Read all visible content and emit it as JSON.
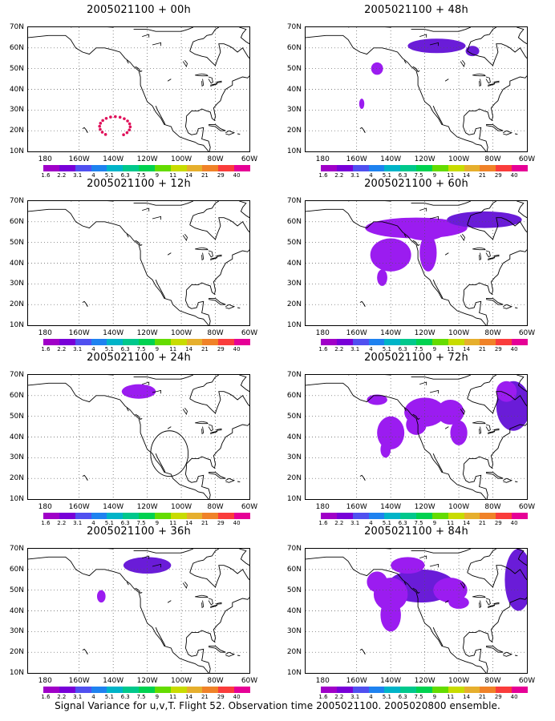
{
  "panels": [
    {
      "title": "2005021100 + 00h",
      "blobs": [],
      "dots": true
    },
    {
      "title": "2005021100 + 48h",
      "blobs": [
        {
          "cx": -113,
          "cy": 61,
          "rx": 17,
          "ry": 3.5,
          "dark": true
        },
        {
          "cx": -92,
          "cy": 58.5,
          "rx": 4,
          "ry": 2.5,
          "dark": true
        },
        {
          "cx": -148,
          "cy": 50,
          "rx": 3.5,
          "ry": 3
        },
        {
          "cx": -157,
          "cy": 33,
          "rx": 1.5,
          "ry": 2.5
        }
      ]
    },
    {
      "title": "2005021100 + 12h",
      "blobs": []
    },
    {
      "title": "2005021100 + 60h",
      "blobs": [
        {
          "cx": -125,
          "cy": 57,
          "rx": 30,
          "ry": 5
        },
        {
          "cx": -85,
          "cy": 61,
          "rx": 22,
          "ry": 4,
          "dark": true
        },
        {
          "cx": -140,
          "cy": 44,
          "rx": 12,
          "ry": 8
        },
        {
          "cx": -145,
          "cy": 33,
          "rx": 3,
          "ry": 4
        },
        {
          "cx": -118,
          "cy": 45,
          "rx": 5,
          "ry": 9
        },
        {
          "cx": -120,
          "cy": 55,
          "rx": 12,
          "ry": 4
        }
      ]
    },
    {
      "title": "2005021100 + 24h",
      "blobs": [
        {
          "cx": -125,
          "cy": 62,
          "rx": 10,
          "ry": 3.5
        }
      ],
      "circle": {
        "cx": -107,
        "cy": 32,
        "r": 11
      }
    },
    {
      "title": "2005021100 + 72h",
      "blobs": [
        {
          "cx": -120,
          "cy": 52,
          "rx": 12,
          "ry": 7
        },
        {
          "cx": -105,
          "cy": 52,
          "rx": 8,
          "ry": 6
        },
        {
          "cx": -140,
          "cy": 42,
          "rx": 8,
          "ry": 8
        },
        {
          "cx": -143,
          "cy": 34,
          "rx": 3,
          "ry": 4
        },
        {
          "cx": -148,
          "cy": 58,
          "rx": 6,
          "ry": 2.5
        },
        {
          "cx": -125,
          "cy": 46,
          "rx": 6,
          "ry": 5
        },
        {
          "cx": -100,
          "cy": 42,
          "rx": 5,
          "ry": 6
        },
        {
          "cx": -68,
          "cy": 55,
          "rx": 10,
          "ry": 12,
          "dark": true
        },
        {
          "cx": -72,
          "cy": 62,
          "rx": 6,
          "ry": 5
        }
      ]
    },
    {
      "title": "2005021100 + 36h",
      "blobs": [
        {
          "cx": -120,
          "cy": 62,
          "rx": 14,
          "ry": 4,
          "dark": true
        },
        {
          "cx": -147,
          "cy": 47,
          "rx": 2.5,
          "ry": 3
        }
      ]
    },
    {
      "title": "2005021100 + 84h",
      "blobs": [
        {
          "cx": -122,
          "cy": 52,
          "rx": 20,
          "ry": 8,
          "dark": true
        },
        {
          "cx": -140,
          "cy": 48,
          "rx": 10,
          "ry": 8
        },
        {
          "cx": -140,
          "cy": 38,
          "rx": 6,
          "ry": 8
        },
        {
          "cx": -105,
          "cy": 50,
          "rx": 10,
          "ry": 6
        },
        {
          "cx": -130,
          "cy": 62,
          "rx": 10,
          "ry": 4
        },
        {
          "cx": -100,
          "cy": 44,
          "rx": 6,
          "ry": 3
        },
        {
          "cx": -65,
          "cy": 55,
          "rx": 8,
          "ry": 15,
          "dark": true
        },
        {
          "cx": -148,
          "cy": 54,
          "rx": 6,
          "ry": 5
        }
      ]
    }
  ],
  "axes": {
    "ylabels": [
      "70N",
      "60N",
      "50N",
      "40N",
      "30N",
      "20N",
      "10N"
    ],
    "xlabels": [
      "180",
      "160W",
      "140W",
      "120W",
      "100W",
      "80W",
      "60W"
    ],
    "lat_range": [
      10,
      70
    ],
    "lon_range": [
      -190,
      -60
    ]
  },
  "colorbar": {
    "colors": [
      "#a000c8",
      "#7800d8",
      "#5050f0",
      "#1e82f0",
      "#00b4c8",
      "#00c88c",
      "#00d250",
      "#64dc00",
      "#c8dc00",
      "#e6af2d",
      "#f08228",
      "#fa3c3c",
      "#e60096"
    ],
    "labels": [
      "1.6",
      "2.2",
      "3.1",
      "4",
      "5.1",
      "6.3",
      "7.5",
      "9",
      "11",
      "14",
      "21",
      "29",
      "40"
    ]
  },
  "colors": {
    "signal": "#9b1cf0",
    "signal_dark": "#6a1cd8",
    "dots": "#e0105a"
  },
  "caption": "Signal Variance for u,v,T. Flight 52. Observation time 2005021100. 2005020800 ensemble."
}
